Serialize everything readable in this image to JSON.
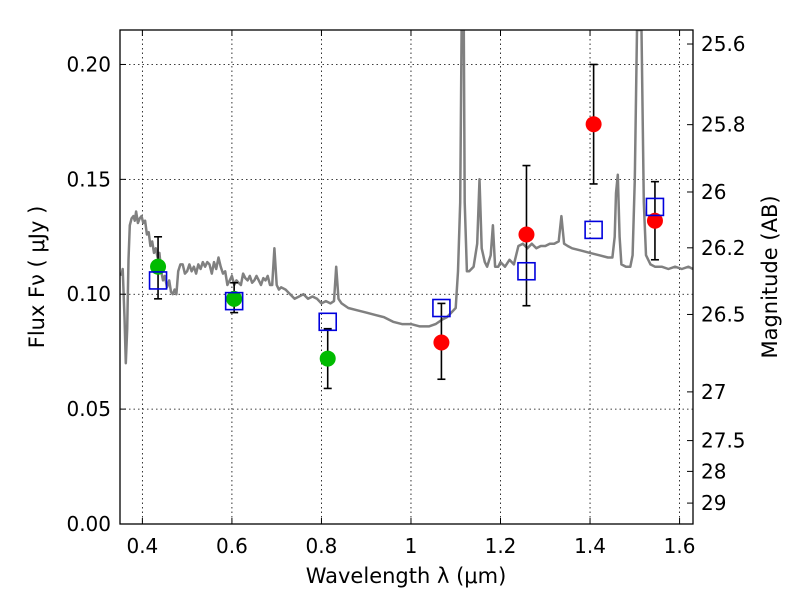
{
  "chart_data": {
    "type": "scatter",
    "title": "",
    "xlabel": "Wavelength  λ (μm)",
    "ylabel": "Flux  Fν  ( μJy )",
    "y2label": "Magnitude (AB)",
    "xlim": [
      0.35,
      1.63
    ],
    "ylim": [
      0.0,
      0.215
    ],
    "grid": true,
    "x_ticks": [
      0.4,
      0.6,
      0.8,
      1.0,
      1.2,
      1.4,
      1.6
    ],
    "x_tick_labels": [
      "0.4",
      "0.6",
      "0.8",
      "1",
      "1.2",
      "1.4",
      "1.6"
    ],
    "y_ticks": [
      0.0,
      0.05,
      0.1,
      0.15,
      0.2
    ],
    "y_tick_labels": [
      "0.00",
      "0.05",
      "0.10",
      "0.15",
      "0.20"
    ],
    "y2_ticks": [
      {
        "flux": 0.2089,
        "label": "25.6"
      },
      {
        "flux": 0.1738,
        "label": "25.8"
      },
      {
        "flux": 0.1445,
        "label": "26"
      },
      {
        "flux": 0.1202,
        "label": "26.2"
      },
      {
        "flux": 0.0912,
        "label": "26.5"
      },
      {
        "flux": 0.0575,
        "label": "27"
      },
      {
        "flux": 0.0363,
        "label": "27.5"
      },
      {
        "flux": 0.0229,
        "label": "28"
      },
      {
        "flux": 0.0091,
        "label": "29"
      }
    ],
    "colors": {
      "spectrum": "#808080",
      "green": "#00bb00",
      "red": "#ff0000",
      "model": "#0000dd",
      "errorbar": "#000000"
    },
    "series": [
      {
        "type": "line",
        "points": [
          [
            0.353,
            0.108
          ],
          [
            0.356,
            0.111
          ],
          [
            0.36,
            0.09
          ],
          [
            0.363,
            0.07
          ],
          [
            0.366,
            0.085
          ],
          [
            0.369,
            0.115
          ],
          [
            0.372,
            0.13
          ],
          [
            0.376,
            0.133
          ],
          [
            0.38,
            0.134
          ],
          [
            0.383,
            0.132
          ],
          [
            0.386,
            0.136
          ],
          [
            0.39,
            0.131
          ],
          [
            0.394,
            0.133
          ],
          [
            0.398,
            0.134
          ],
          [
            0.402,
            0.131
          ],
          [
            0.406,
            0.132
          ],
          [
            0.41,
            0.126
          ],
          [
            0.414,
            0.127
          ],
          [
            0.418,
            0.121
          ],
          [
            0.422,
            0.123
          ],
          [
            0.426,
            0.118
          ],
          [
            0.43,
            0.12
          ],
          [
            0.434,
            0.116
          ],
          [
            0.438,
            0.118
          ],
          [
            0.442,
            0.11
          ],
          [
            0.446,
            0.106
          ],
          [
            0.45,
            0.108
          ],
          [
            0.455,
            0.103
          ],
          [
            0.46,
            0.106
          ],
          [
            0.464,
            0.101
          ],
          [
            0.468,
            0.1
          ],
          [
            0.472,
            0.102
          ],
          [
            0.476,
            0.1
          ],
          [
            0.48,
            0.11
          ],
          [
            0.485,
            0.113
          ],
          [
            0.49,
            0.113
          ],
          [
            0.495,
            0.109
          ],
          [
            0.5,
            0.11
          ],
          [
            0.505,
            0.113
          ],
          [
            0.51,
            0.11
          ],
          [
            0.515,
            0.112
          ],
          [
            0.52,
            0.109
          ],
          [
            0.525,
            0.113
          ],
          [
            0.53,
            0.111
          ],
          [
            0.535,
            0.114
          ],
          [
            0.54,
            0.112
          ],
          [
            0.545,
            0.114
          ],
          [
            0.55,
            0.113
          ],
          [
            0.555,
            0.109
          ],
          [
            0.56,
            0.114
          ],
          [
            0.565,
            0.111
          ],
          [
            0.57,
            0.116
          ],
          [
            0.575,
            0.112
          ],
          [
            0.58,
            0.109
          ],
          [
            0.585,
            0.11
          ],
          [
            0.59,
            0.104
          ],
          [
            0.595,
            0.106
          ],
          [
            0.6,
            0.108
          ],
          [
            0.605,
            0.104
          ],
          [
            0.61,
            0.106
          ],
          [
            0.615,
            0.105
          ],
          [
            0.62,
            0.104
          ],
          [
            0.625,
            0.109
          ],
          [
            0.63,
            0.107
          ],
          [
            0.635,
            0.106
          ],
          [
            0.64,
            0.108
          ],
          [
            0.645,
            0.105
          ],
          [
            0.65,
            0.106
          ],
          [
            0.655,
            0.108
          ],
          [
            0.66,
            0.106
          ],
          [
            0.665,
            0.104
          ],
          [
            0.67,
            0.107
          ],
          [
            0.675,
            0.106
          ],
          [
            0.68,
            0.108
          ],
          [
            0.685,
            0.104
          ],
          [
            0.69,
            0.104
          ],
          [
            0.695,
            0.12
          ],
          [
            0.7,
            0.104
          ],
          [
            0.705,
            0.102
          ],
          [
            0.71,
            0.103
          ],
          [
            0.72,
            0.102
          ],
          [
            0.73,
            0.1
          ],
          [
            0.74,
            0.098
          ],
          [
            0.75,
            0.099
          ],
          [
            0.76,
            0.1
          ],
          [
            0.77,
            0.098
          ],
          [
            0.78,
            0.099
          ],
          [
            0.79,
            0.098
          ],
          [
            0.8,
            0.096
          ],
          [
            0.81,
            0.097
          ],
          [
            0.82,
            0.096
          ],
          [
            0.828,
            0.097
          ],
          [
            0.833,
            0.112
          ],
          [
            0.838,
            0.098
          ],
          [
            0.845,
            0.096
          ],
          [
            0.86,
            0.094
          ],
          [
            0.88,
            0.093
          ],
          [
            0.9,
            0.092
          ],
          [
            0.92,
            0.091
          ],
          [
            0.94,
            0.09
          ],
          [
            0.96,
            0.088
          ],
          [
            0.98,
            0.087
          ],
          [
            1.0,
            0.087
          ],
          [
            1.02,
            0.086
          ],
          [
            1.04,
            0.086
          ],
          [
            1.055,
            0.087
          ],
          [
            1.07,
            0.089
          ],
          [
            1.08,
            0.09
          ],
          [
            1.09,
            0.092
          ],
          [
            1.1,
            0.094
          ],
          [
            1.105,
            0.11
          ],
          [
            1.11,
            0.14
          ],
          [
            1.113,
            0.215
          ],
          [
            1.118,
            0.215
          ],
          [
            1.12,
            0.14
          ],
          [
            1.125,
            0.11
          ],
          [
            1.13,
            0.11
          ],
          [
            1.14,
            0.112
          ],
          [
            1.148,
            0.122
          ],
          [
            1.153,
            0.15
          ],
          [
            1.158,
            0.12
          ],
          [
            1.165,
            0.114
          ],
          [
            1.17,
            0.112
          ],
          [
            1.178,
            0.117
          ],
          [
            1.183,
            0.13
          ],
          [
            1.188,
            0.112
          ],
          [
            1.195,
            0.112
          ],
          [
            1.2,
            0.114
          ],
          [
            1.21,
            0.112
          ],
          [
            1.22,
            0.115
          ],
          [
            1.23,
            0.113
          ],
          [
            1.24,
            0.121
          ],
          [
            1.25,
            0.122
          ],
          [
            1.26,
            0.12
          ],
          [
            1.27,
            0.122
          ],
          [
            1.28,
            0.12
          ],
          [
            1.29,
            0.121
          ],
          [
            1.3,
            0.121
          ],
          [
            1.31,
            0.122
          ],
          [
            1.32,
            0.122
          ],
          [
            1.33,
            0.123
          ],
          [
            1.336,
            0.134
          ],
          [
            1.342,
            0.122
          ],
          [
            1.35,
            0.121
          ],
          [
            1.36,
            0.12
          ],
          [
            1.38,
            0.119
          ],
          [
            1.4,
            0.118
          ],
          [
            1.42,
            0.117
          ],
          [
            1.44,
            0.116
          ],
          [
            1.45,
            0.116
          ],
          [
            1.455,
            0.125
          ],
          [
            1.458,
            0.144
          ],
          [
            1.462,
            0.152
          ],
          [
            1.466,
            0.125
          ],
          [
            1.47,
            0.113
          ],
          [
            1.48,
            0.112
          ],
          [
            1.49,
            0.112
          ],
          [
            1.495,
            0.117
          ],
          [
            1.5,
            0.15
          ],
          [
            1.505,
            0.215
          ],
          [
            1.515,
            0.215
          ],
          [
            1.52,
            0.14
          ],
          [
            1.525,
            0.117
          ],
          [
            1.535,
            0.113
          ],
          [
            1.545,
            0.112
          ],
          [
            1.56,
            0.112
          ],
          [
            1.575,
            0.111
          ],
          [
            1.59,
            0.112
          ],
          [
            1.605,
            0.111
          ],
          [
            1.62,
            0.112
          ],
          [
            1.63,
            0.111
          ]
        ]
      },
      {
        "type": "scatter",
        "marker": "circle",
        "points": [
          {
            "x": 0.435,
            "y": 0.112,
            "err_lo": 0.098,
            "err_hi": 0.125
          },
          {
            "x": 0.605,
            "y": 0.098,
            "err_lo": 0.092,
            "err_hi": 0.105
          },
          {
            "x": 0.814,
            "y": 0.072,
            "err_lo": 0.059,
            "err_hi": 0.085
          }
        ]
      },
      {
        "type": "scatter",
        "marker": "circle",
        "points": [
          {
            "x": 1.068,
            "y": 0.079,
            "err_lo": 0.063,
            "err_hi": 0.096
          },
          {
            "x": 1.258,
            "y": 0.126,
            "err_lo": 0.095,
            "err_hi": 0.156
          },
          {
            "x": 1.408,
            "y": 0.174,
            "err_lo": 0.148,
            "err_hi": 0.2
          },
          {
            "x": 1.545,
            "y": 0.132,
            "err_lo": 0.115,
            "err_hi": 0.149
          }
        ]
      },
      {
        "type": "scatter",
        "marker": "open-square",
        "points": [
          {
            "x": 0.435,
            "y": 0.106
          },
          {
            "x": 0.605,
            "y": 0.097
          },
          {
            "x": 0.814,
            "y": 0.088
          },
          {
            "x": 1.068,
            "y": 0.094
          },
          {
            "x": 1.258,
            "y": 0.11
          },
          {
            "x": 1.408,
            "y": 0.128
          },
          {
            "x": 1.545,
            "y": 0.138
          }
        ]
      }
    ]
  }
}
